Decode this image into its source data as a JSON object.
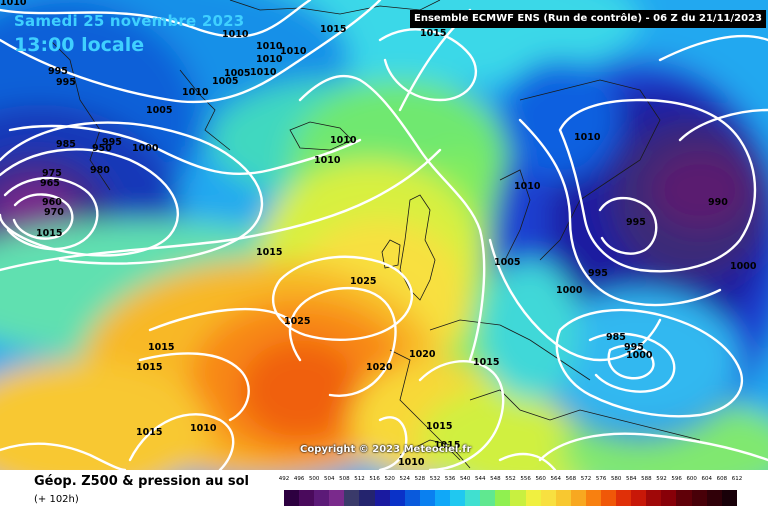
{
  "header": {
    "date": "Samedi 25 novembre 2023",
    "time": "13:00 locale",
    "run": "Ensemble ECMWF ENS  (Run de contrôle)   -  06 Z du 21/11/2023"
  },
  "copyright": "Copyright © 2023 Meteociel.fr",
  "footer": {
    "title": "Géop. Z500 & pression au sol",
    "hours": "(+ 102h)"
  },
  "legend": {
    "ticks": [
      "492",
      "496",
      "500",
      "504",
      "508",
      "512",
      "516",
      "520",
      "524",
      "528",
      "532",
      "536",
      "540",
      "544",
      "548",
      "552",
      "556",
      "560",
      "564",
      "568",
      "572",
      "576",
      "580",
      "584",
      "588",
      "592",
      "596",
      "600",
      "604",
      "608",
      "612"
    ],
    "colors": [
      "#2d0040",
      "#4a0a5c",
      "#5c1a78",
      "#7a2a8c",
      "#3a3a6a",
      "#24246e",
      "#1a1aa0",
      "#0a32c8",
      "#0a5adc",
      "#0a80f0",
      "#10a8f8",
      "#20c8f0",
      "#40e0d0",
      "#60e890",
      "#90f050",
      "#c8f040",
      "#f0f040",
      "#f8e040",
      "#f8c830",
      "#f8a820",
      "#f88010",
      "#f05808",
      "#e03008",
      "#c81808",
      "#a00808",
      "#880008",
      "#600008",
      "#480008",
      "#300008",
      "#180008"
    ]
  },
  "map_labels": [
    "1010",
    "995",
    "995",
    "985",
    "950",
    "995",
    "1000",
    "980",
    "975",
    "965",
    "960",
    "970",
    "1015",
    "1010",
    "1010",
    "1010",
    "1010",
    "1005",
    "1010",
    "1005",
    "1010",
    "1015",
    "1005",
    "1010",
    "1010",
    "1015",
    "1025",
    "1025",
    "1015",
    "1015",
    "1015",
    "1020",
    "1020",
    "1015",
    "1010",
    "1015",
    "1015",
    "1010",
    "1015",
    "1010",
    "1010",
    "1005",
    "1000",
    "995",
    "995",
    "990",
    "985",
    "995",
    "1000"
  ]
}
